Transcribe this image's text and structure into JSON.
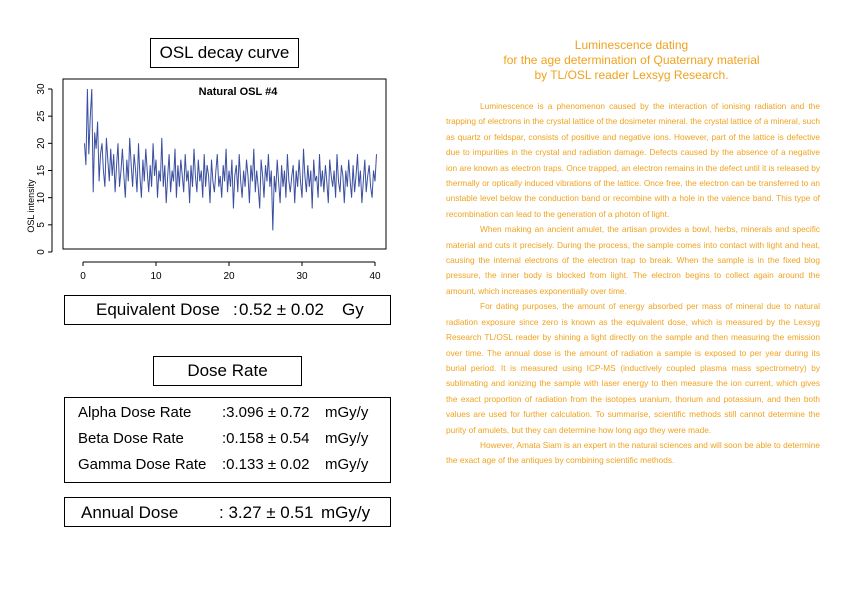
{
  "osl_title": "OSL decay curve",
  "chart_data": {
    "type": "line",
    "title": "Natural OSL #4",
    "ylabel": "OSL intensity",
    "xlabel": "",
    "xlim": [
      0,
      40
    ],
    "ylim": [
      0,
      30
    ],
    "x_ticks": [
      "0",
      "10",
      "20",
      "30",
      "40"
    ],
    "y_ticks": [
      "0",
      "5",
      "10",
      "15",
      "20",
      "25",
      "30"
    ],
    "color": "#3b4fa0",
    "series": [
      {
        "x_start": 0.2,
        "x_step": 0.2,
        "values": [
          20,
          16,
          30,
          18,
          25,
          30,
          11,
          22,
          19,
          24,
          13,
          18,
          20,
          15,
          12,
          21,
          17,
          13,
          19,
          14,
          18,
          11,
          16,
          20,
          12,
          15,
          19,
          14,
          10,
          17,
          13,
          21,
          16,
          12,
          18,
          15,
          11,
          20,
          14,
          10,
          17,
          13,
          19,
          15,
          11,
          16,
          12,
          20,
          14,
          17,
          10,
          15,
          13,
          21,
          12,
          16,
          9,
          14,
          18,
          11,
          15,
          13,
          19,
          10,
          16,
          12,
          17,
          14,
          11,
          18,
          13,
          15,
          9,
          16,
          12,
          19,
          14,
          11,
          17,
          13,
          15,
          10,
          18,
          12,
          16,
          14,
          9,
          17,
          13,
          11,
          15,
          18,
          12,
          14,
          10,
          16,
          13,
          19,
          11,
          15,
          12,
          17,
          8,
          14,
          16,
          11,
          18,
          13,
          10,
          15,
          12,
          17,
          14,
          9,
          16,
          13,
          19,
          11,
          15,
          12,
          8,
          17,
          14,
          10,
          16,
          13,
          18,
          12,
          15,
          4,
          14,
          11,
          17,
          13,
          9,
          16,
          12,
          15,
          10,
          18,
          13,
          11,
          14,
          16,
          9,
          15,
          12,
          17,
          13,
          10,
          19,
          14,
          11,
          16,
          12,
          15,
          8,
          17,
          13,
          14,
          10,
          18,
          12,
          15,
          11,
          16,
          13,
          9,
          17,
          14,
          12,
          15,
          10,
          18,
          13,
          11,
          16,
          14,
          9,
          15,
          12,
          17,
          13,
          10,
          16,
          11,
          14,
          18,
          12,
          15,
          9,
          13,
          17,
          11,
          14,
          16,
          12,
          10,
          15,
          13,
          18
        ]
      }
    ]
  },
  "equivalent_dose": {
    "label": "Equivalent Dose",
    "sep": ":",
    "value": "0.52 ± 0.02",
    "unit": "Gy"
  },
  "dose_rate_title": "Dose Rate",
  "dose_rates": [
    {
      "label": "Alpha Dose Rate",
      "value": ":3.096 ± 0.72",
      "unit": "mGy/y"
    },
    {
      "label": "Beta Dose Rate",
      "value": ":0.158 ± 0.54",
      "unit": "mGy/y"
    },
    {
      "label": "Gamma Dose Rate",
      "value": ":0.133 ± 0.02",
      "unit": "mGy/y"
    }
  ],
  "annual_dose": {
    "label": "Annual Dose",
    "value": ": 3.27 ± 0.51",
    "unit": "mGy/y"
  },
  "heading": [
    "Luminescence dating",
    "for the age determination of Quaternary material",
    "by TL/OSL reader Lexsyg Research."
  ],
  "paragraphs": [
    "Luminescence is a phenomenon caused by the interaction of ionising radiation and the trapping of electrons in the crystal lattice of the dosimeter mineral. the crystal lattice of a mineral, such as quartz or feldspar, consists of positive and negative ions. However, part of the lattice is defective due to impurities in the crystal and radiation damage. Defects caused by the absence of a negative ion are known as electron traps. Once trapped, an electron remains in the defect until it is released by thermally or optically induced vibrations of the lattice. Once free, the electron can be transferred to an unstable level below the conduction band or recombine with a hole in the valence band. This type of recombination can lead to the generation of a photon of light.",
    "When making an ancient amulet, the artisan provides a bowl, herbs, minerals and specific material and cuts it precisely. During the process, the sample comes into contact with light and heat, causing the internal electrons of the electron trap to break. When the sample is in the fixed blog pressure, the inner body is blocked from light. The electron begins to collect again around the amount, which increases exponentially over time.",
    "For dating purposes, the amount of energy absorbed per mass of mineral due to natural radiation exposure since zero is known as the equivalent dose, which is measured by the Lexsyg Research TL/OSL reader by shining a light directly on the sample and then measuring the emission over time. The annual dose is the amount of radiation a sample is exposed to per year during its burial period. It is measured using ICP-MS (inductively coupled plasma mass spectrometry) by sublimating and ionizing the sample with laser energy to then measure the ion current, which gives the exact proportion of radiation from the isotopes uranium, thorium and potassium, and then both values are used for further calculation. To summarise, scientific methods still cannot determine the purity of amulets, but they can determine how long ago they were made.",
    "However, Amata Siam is an expert in the natural sciences and will soon be able to determine the exact age of the antiques by combining scientific methods."
  ]
}
